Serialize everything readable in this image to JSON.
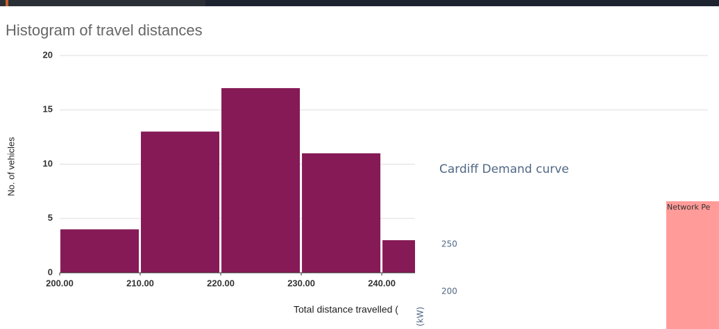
{
  "chart_data": [
    {
      "type": "histogram",
      "title": "Histogram of travel distances",
      "xlabel": "Total distance travelled (",
      "ylabel": "No. of vehicles",
      "bins": [
        200,
        210,
        220,
        230,
        240,
        250
      ],
      "counts": [
        4,
        13,
        17,
        11,
        3
      ],
      "color": "#861a56",
      "xlim": [
        200,
        280.5
      ],
      "xticks": [
        {
          "value": 200,
          "label": "200.00"
        },
        {
          "value": 210,
          "label": "210.00"
        },
        {
          "value": 220,
          "label": "220.00"
        },
        {
          "value": 230,
          "label": "230.00"
        },
        {
          "value": 240,
          "label": "240.00"
        }
      ],
      "ylim": [
        0,
        20
      ],
      "yticks": [
        0,
        5,
        10,
        15,
        20
      ],
      "grid": true
    },
    {
      "type": "line",
      "title": "Cardiff Demand curve",
      "ylabel": "(kW)",
      "annotation": "Network Pe",
      "ylim": [
        160,
        290
      ],
      "yticks": [
        250,
        200
      ]
    }
  ]
}
